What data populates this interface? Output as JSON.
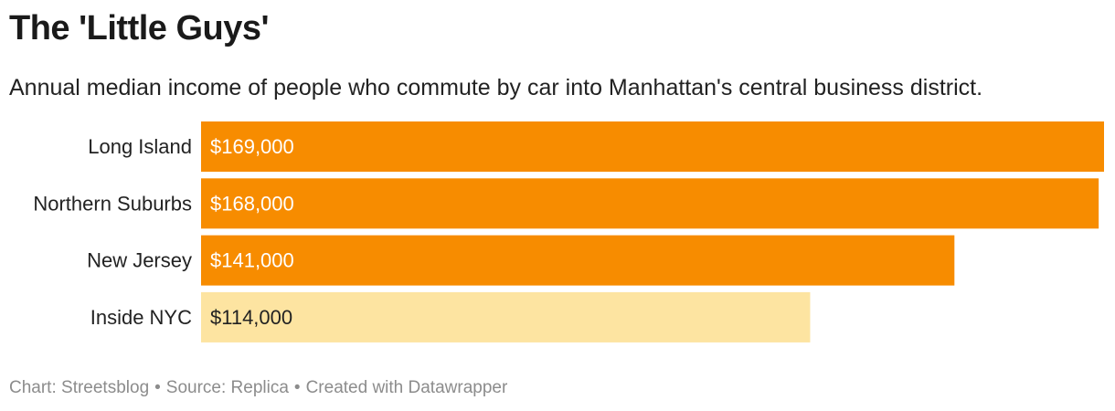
{
  "header": {
    "title": "The 'Little Guys'",
    "subtitle": "Annual median income of people who commute by car into Manhattan's central business district."
  },
  "footer": {
    "chart_credit": "Chart: Streetsblog",
    "source": "Source: Replica",
    "tool": "Created with Datawrapper",
    "separator": "•"
  },
  "colors": {
    "bar_primary": "#f78c00",
    "bar_highlight": "#fde4a1",
    "label_on_primary": "#ffffff",
    "label_on_highlight": "#222222"
  },
  "chart_data": {
    "type": "bar",
    "orientation": "horizontal",
    "title": "The 'Little Guys'",
    "subtitle": "Annual median income of people who commute by car into Manhattan's central business district.",
    "categories": [
      "Long Island",
      "Northern Suburbs",
      "New Jersey",
      "Inside NYC"
    ],
    "values": [
      169000,
      168000,
      141000,
      114000
    ],
    "value_labels": [
      "$169,000",
      "$168,000",
      "$141,000",
      "$114,000"
    ],
    "bar_colors": [
      "#f78c00",
      "#f78c00",
      "#f78c00",
      "#fde4a1"
    ],
    "xlim": [
      0,
      169000
    ],
    "grid": false,
    "legend": "none",
    "xlabel": "",
    "ylabel": ""
  }
}
